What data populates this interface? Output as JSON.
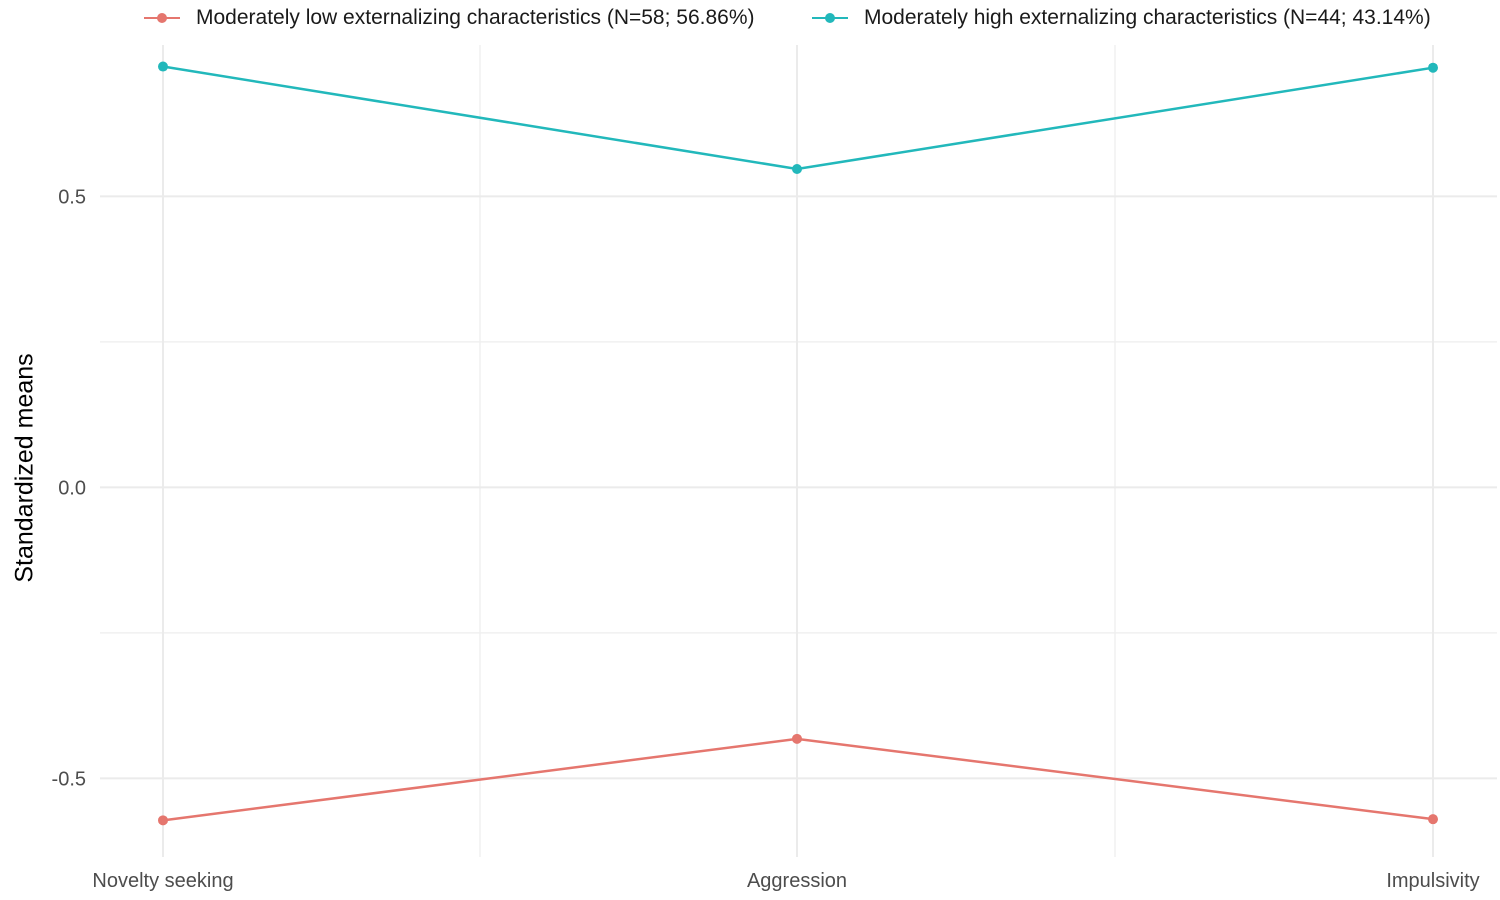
{
  "chart_data": {
    "type": "line",
    "categories": [
      "Novelty seeking",
      "Aggression",
      "Impulsivity"
    ],
    "series": [
      {
        "name": "Moderately low externalizing characteristics (N=58; 56.86%)",
        "color": "#e5766e",
        "values": [
          -0.572,
          -0.432,
          -0.57
        ]
      },
      {
        "name": "Moderately high externalizing characteristics (N=44; 43.14%)",
        "color": "#22b8bb",
        "values": [
          0.723,
          0.547,
          0.721
        ]
      }
    ],
    "ylabel": "Standardized means",
    "xlabel": "",
    "ylim": [
      -0.635,
      0.76
    ],
    "yticks": [
      "-0.5",
      "0.0",
      "0.5"
    ],
    "ytick_values": [
      -0.5,
      0.0,
      0.5
    ],
    "minor_yticks": [
      -0.25,
      0.25
    ],
    "grid": true,
    "legend_position": "top"
  }
}
